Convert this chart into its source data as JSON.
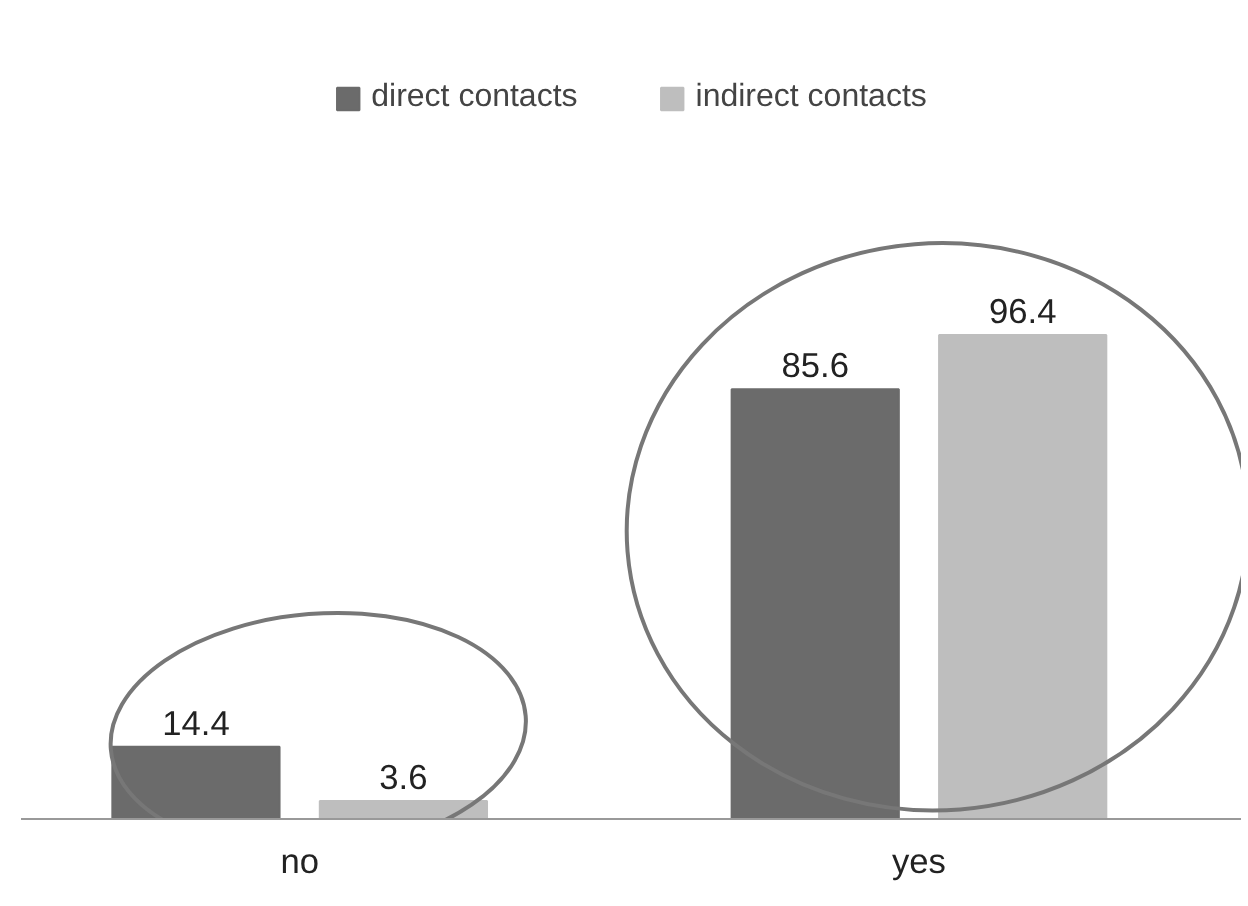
{
  "chart_data": {
    "type": "bar",
    "categories": [
      "no",
      "yes"
    ],
    "series": [
      {
        "name": "direct contacts",
        "color": "#6b6b6b",
        "values": [
          14.4,
          85.6
        ]
      },
      {
        "name": "indirect contacts",
        "color": "#bebebe",
        "values": [
          3.6,
          96.4
        ]
      }
    ],
    "data_labels": true,
    "legend": "top",
    "grid": false
  }
}
